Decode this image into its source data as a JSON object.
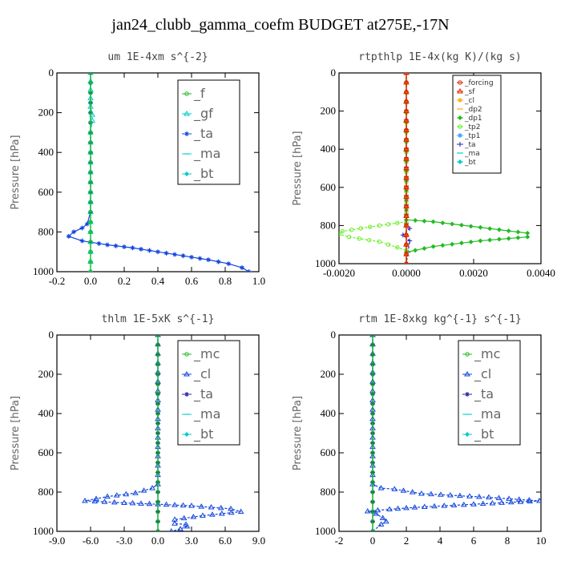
{
  "title": "jan24_clubb_gamma_coefm  BUDGET at275E,-17N",
  "colors": {
    "green": "#22bb22",
    "blue": "#1144dd",
    "darkblue": "#2222aa",
    "cyan": "#00cccc",
    "red": "#dd2200",
    "orange": "#ffaa00",
    "lime": "#66ee22",
    "skyblue": "#3399ff"
  },
  "chart_data": [
    {
      "type": "line",
      "title": "um  1E-4xm s^{-2}",
      "ylabel": "Pressure [hPa]",
      "xlim": [
        -0.2,
        1.0
      ],
      "ylim": [
        1000,
        0
      ],
      "xticks": [
        "-0.2",
        "0.0",
        "0.2",
        "0.4",
        "0.6",
        "0.8",
        "1.0"
      ],
      "xtick_values": [
        -0.2,
        0.0,
        0.2,
        0.4,
        0.6,
        0.8,
        1.0
      ],
      "yticks": [
        "0",
        "200",
        "400",
        "600",
        "800",
        "1000"
      ],
      "ytick_values": [
        0,
        200,
        400,
        600,
        800,
        1000
      ],
      "legend": [
        "_f",
        "_gf",
        "_ta",
        "_ma",
        "_bt"
      ],
      "legend_size": "big",
      "series": [
        {
          "name": "_f",
          "color": "#22bb22",
          "x": [
            0,
            0,
            0,
            0,
            0,
            0,
            0
          ],
          "y": [
            0,
            200,
            400,
            600,
            800,
            900,
            1000
          ]
        },
        {
          "name": "_gf",
          "color": "#00cccc",
          "x": [
            0,
            0,
            0.01,
            0.01,
            0,
            0,
            0,
            0
          ],
          "y": [
            0,
            170,
            210,
            240,
            300,
            500,
            800,
            1000
          ]
        },
        {
          "name": "_ta",
          "color": "#1144dd",
          "x": [
            0,
            0,
            -0.02,
            -0.05,
            -0.1,
            -0.13,
            -0.05,
            0.1,
            0.25,
            0.4,
            0.55,
            0.7,
            0.82,
            0.9,
            0.94
          ],
          "y": [
            0,
            700,
            760,
            780,
            800,
            822,
            845,
            865,
            880,
            900,
            920,
            940,
            960,
            980,
            1000
          ]
        },
        {
          "name": "_ma",
          "color": "#00cccc",
          "x": [
            0,
            0,
            0
          ],
          "y": [
            0,
            500,
            1000
          ]
        },
        {
          "name": "_bt",
          "color": "#00cccc",
          "x": [
            0,
            0,
            0
          ],
          "y": [
            0,
            500,
            1000
          ]
        }
      ]
    },
    {
      "type": "line",
      "title": "rtpthlp  1E-4x(kg K)/(kg s)",
      "ylabel": "Pressure [hPa]",
      "xlim": [
        -0.002,
        0.004
      ],
      "ylim": [
        1000,
        0
      ],
      "xticks": [
        "-0.0020",
        "0.0000",
        "0.0020",
        "0.0040"
      ],
      "xtick_values": [
        -0.002,
        0.0,
        0.002,
        0.004
      ],
      "yticks": [
        "0",
        "200",
        "400",
        "600",
        "800",
        "1000"
      ],
      "ytick_values": [
        0,
        200,
        400,
        600,
        800,
        1000
      ],
      "legend": [
        "_forcing",
        "_sf",
        "_cl",
        "_dp2",
        "_dp1",
        "_tp2",
        "_tp1",
        "_ta",
        "_ma",
        "_bt"
      ],
      "legend_size": "small",
      "series": [
        {
          "name": "_forcing",
          "color": "#dd2200",
          "x": [
            0,
            0,
            0
          ],
          "y": [
            0,
            500,
            1000
          ]
        },
        {
          "name": "_sf",
          "color": "#dd2200",
          "x": [
            0,
            0
          ],
          "y": [
            0,
            1000
          ]
        },
        {
          "name": "_cl",
          "color": "#ffaa00",
          "x": [
            0,
            0
          ],
          "y": [
            0,
            1000
          ]
        },
        {
          "name": "_dp2",
          "color": "#ffaa00",
          "x": [
            0,
            0
          ],
          "y": [
            0,
            1000
          ]
        },
        {
          "name": "_dp1",
          "color": "#22bb22",
          "x": [
            0,
            0,
            0.0008,
            0.0022,
            0.0036,
            0.0036,
            0.0022,
            0.0008,
            0,
            0
          ],
          "y": [
            0,
            770,
            780,
            810,
            840,
            860,
            880,
            910,
            940,
            1000
          ]
        },
        {
          "name": "_tp2",
          "color": "#66ee22",
          "x": [
            0,
            0,
            -0.0008,
            -0.0019,
            -0.002,
            -0.0017,
            -0.0008,
            0,
            0
          ],
          "y": [
            0,
            780,
            800,
            830,
            845,
            860,
            885,
            930,
            1000
          ]
        },
        {
          "name": "_tp1",
          "color": "#3399ff",
          "x": [
            0,
            0,
            0
          ],
          "y": [
            0,
            500,
            1000
          ]
        },
        {
          "name": "_ta",
          "color": "#2222aa",
          "x": [
            0,
            0,
            0.0001,
            -0.0001,
            0.0001,
            0
          ],
          "y": [
            0,
            790,
            815,
            850,
            880,
            1000
          ]
        },
        {
          "name": "_ma",
          "color": "#00cccc",
          "x": [
            0,
            0
          ],
          "y": [
            0,
            1000
          ]
        },
        {
          "name": "_bt",
          "color": "#00cccc",
          "x": [
            0,
            0
          ],
          "y": [
            0,
            1000
          ]
        }
      ]
    },
    {
      "type": "line",
      "title": "thlm  1E-5xK s^{-1}",
      "ylabel": "Pressure [hPa]",
      "xlim": [
        -9.0,
        9.0
      ],
      "ylim": [
        1000,
        0
      ],
      "xticks": [
        "-9.0",
        "-6.0",
        "-3.0",
        "0.0",
        "3.0",
        "6.0",
        "9.0"
      ],
      "xtick_values": [
        -9.0,
        -6.0,
        -3.0,
        0.0,
        3.0,
        6.0,
        9.0
      ],
      "yticks": [
        "0",
        "200",
        "400",
        "600",
        "800",
        "1000"
      ],
      "ytick_values": [
        0,
        200,
        400,
        600,
        800,
        1000
      ],
      "legend": [
        "_mc",
        "_cl",
        "_ta",
        "_ma",
        "_bt"
      ],
      "legend_size": "big",
      "series": [
        {
          "name": "_mc",
          "color": "#22bb22",
          "x": [
            0,
            0,
            0,
            0
          ],
          "y": [
            0,
            500,
            800,
            1000
          ]
        },
        {
          "name": "_cl",
          "color": "#1144dd",
          "x": [
            0,
            0,
            -0.5,
            -2.0,
            -4.5,
            -6.5,
            -3.0,
            0,
            3.0,
            6.5,
            7.4,
            4.0,
            1.5,
            1.5,
            2.5,
            2.6,
            2.0,
            1.2
          ],
          "y": [
            0,
            760,
            780,
            805,
            823,
            845,
            855,
            862,
            870,
            885,
            900,
            920,
            940,
            960,
            965,
            975,
            988,
            1000
          ]
        },
        {
          "name": "_ta",
          "color": "#2222aa",
          "x": [
            0,
            0,
            0
          ],
          "y": [
            0,
            500,
            1000
          ]
        },
        {
          "name": "_ma",
          "color": "#00cccc",
          "x": [
            0,
            0
          ],
          "y": [
            0,
            1000
          ]
        },
        {
          "name": "_bt",
          "color": "#00cccc",
          "x": [
            0,
            0,
            0
          ],
          "y": [
            0,
            500,
            1000
          ]
        }
      ]
    },
    {
      "type": "line",
      "title": "rtm  1E-8xkg kg^{-1} s^{-1}",
      "ylabel": "Pressure [hPa]",
      "xlim": [
        -2,
        10
      ],
      "ylim": [
        1000,
        0
      ],
      "xticks": [
        "-2",
        "0",
        "2",
        "4",
        "6",
        "8",
        "10"
      ],
      "xtick_values": [
        -2,
        0,
        2,
        4,
        6,
        8,
        10
      ],
      "yticks": [
        "0",
        "200",
        "400",
        "600",
        "800",
        "1000"
      ],
      "ytick_values": [
        0,
        200,
        400,
        600,
        800,
        1000
      ],
      "legend": [
        "_mc",
        "_cl",
        "_ta",
        "_ma",
        "_bt"
      ],
      "legend_size": "big",
      "series": [
        {
          "name": "_mc",
          "color": "#22bb22",
          "x": [
            0,
            0,
            0,
            0
          ],
          "y": [
            0,
            500,
            800,
            1000
          ]
        },
        {
          "name": "_cl",
          "color": "#1144dd",
          "x": [
            0,
            0,
            0.5,
            1.3,
            2.9,
            6.9,
            9.9,
            6.0,
            2.5,
            1.0,
            0.3,
            -0.3,
            0.2,
            0.6,
            0.8,
            0.5,
            0
          ],
          "y": [
            0,
            760,
            780,
            785,
            808,
            827,
            845,
            862,
            878,
            888,
            893,
            898,
            910,
            932,
            950,
            965,
            1000
          ]
        },
        {
          "name": "_ta",
          "color": "#2222aa",
          "x": [
            0,
            0,
            0
          ],
          "y": [
            0,
            500,
            1000
          ]
        },
        {
          "name": "_ma",
          "color": "#00cccc",
          "x": [
            0,
            0
          ],
          "y": [
            0,
            1000
          ]
        },
        {
          "name": "_bt",
          "color": "#00cccc",
          "x": [
            0,
            0,
            0
          ],
          "y": [
            0,
            500,
            1000
          ]
        }
      ]
    }
  ]
}
